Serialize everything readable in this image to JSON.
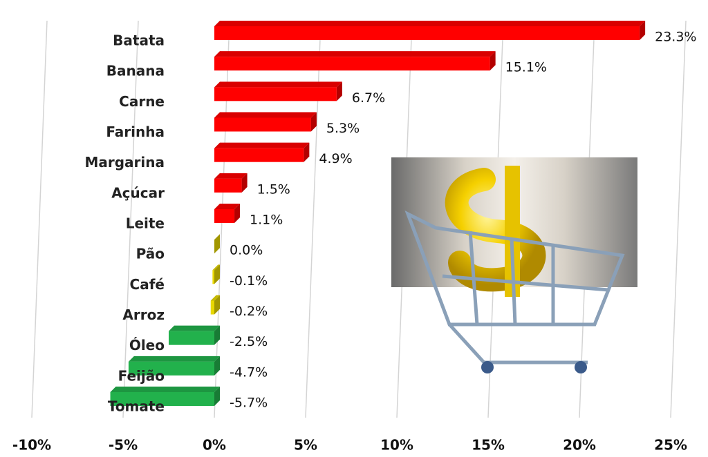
{
  "chart_data": {
    "type": "barh",
    "categories": [
      "Batata",
      "Banana",
      "Carne",
      "Farinha",
      "Margarina",
      "Açúcar",
      "Leite",
      "Pão",
      "Café",
      "Arroz",
      "Óleo",
      "Feijão",
      "Tomate"
    ],
    "values": [
      23.3,
      15.1,
      6.7,
      5.3,
      4.9,
      1.5,
      1.1,
      0.0,
      -0.1,
      -0.2,
      -2.5,
      -4.7,
      -5.7
    ],
    "value_labels": [
      "23.3%",
      "15.1%",
      "6.7%",
      "5.3%",
      "4.9%",
      "1.5%",
      "1.1%",
      "0.0%",
      "-0.1%",
      "-0.2%",
      "-2.5%",
      "-4.7%",
      "-5.7%"
    ],
    "colors": [
      "#ff0000",
      "#ff0000",
      "#ff0000",
      "#ff0000",
      "#ff0000",
      "#ff0000",
      "#ff0000",
      "#e8d800",
      "#e8d800",
      "#e8d800",
      "#22b14c",
      "#22b14c",
      "#22b14c"
    ],
    "xlim": [
      -10,
      25
    ],
    "xticks": [
      {
        "value": -10,
        "label": "-10%"
      },
      {
        "value": -5,
        "label": "-5%"
      },
      {
        "value": 0,
        "label": "0%"
      },
      {
        "value": 5,
        "label": "5%"
      },
      {
        "value": 10,
        "label": "10%"
      },
      {
        "value": 15,
        "label": "15%"
      },
      {
        "value": 20,
        "label": "20%"
      },
      {
        "value": 25,
        "label": "25%"
      }
    ],
    "grid": true
  }
}
